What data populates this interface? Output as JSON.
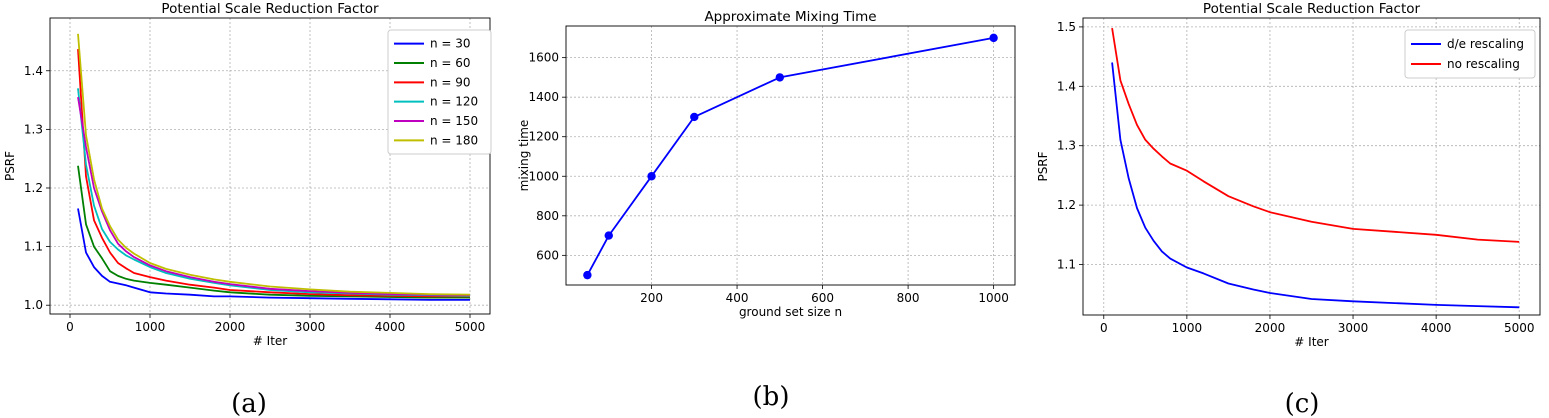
{
  "chart_data": [
    {
      "type": "line",
      "title": "Potential Scale Reduction Factor",
      "xlabel": "# Iter",
      "ylabel": "PSRF",
      "xlim": [
        -250,
        5250
      ],
      "ylim": [
        0.985,
        1.49
      ],
      "xticks": [
        0,
        1000,
        2000,
        3000,
        4000,
        5000
      ],
      "xtick_labels": [
        "0",
        "1000",
        "2000",
        "3000",
        "4000",
        "5000"
      ],
      "yticks": [
        1.0,
        1.1,
        1.2,
        1.3,
        1.4
      ],
      "ytick_labels": [
        "1.0",
        "1.1",
        "1.2",
        "1.3",
        "1.4"
      ],
      "grid": true,
      "legend_position": "top-right",
      "x": [
        100,
        200,
        300,
        400,
        500,
        600,
        700,
        800,
        1000,
        1200,
        1500,
        1800,
        2000,
        2500,
        3000,
        3500,
        4000,
        4500,
        5000
      ],
      "series": [
        {
          "name": "n = 30",
          "color": "#0000ff",
          "values": [
            1.165,
            1.09,
            1.065,
            1.05,
            1.04,
            1.037,
            1.034,
            1.03,
            1.022,
            1.02,
            1.018,
            1.015,
            1.015,
            1.013,
            1.012,
            1.011,
            1.01,
            1.009,
            1.009
          ]
        },
        {
          "name": "n = 60",
          "color": "#008000",
          "values": [
            1.238,
            1.138,
            1.1,
            1.08,
            1.058,
            1.05,
            1.045,
            1.042,
            1.038,
            1.035,
            1.03,
            1.025,
            1.022,
            1.018,
            1.016,
            1.015,
            1.014,
            1.013,
            1.013
          ]
        },
        {
          "name": "n = 90",
          "color": "#ff0000",
          "values": [
            1.437,
            1.22,
            1.145,
            1.115,
            1.09,
            1.072,
            1.063,
            1.055,
            1.048,
            1.042,
            1.035,
            1.03,
            1.026,
            1.022,
            1.019,
            1.017,
            1.016,
            1.015,
            1.015
          ]
        },
        {
          "name": "n = 120",
          "color": "#00bfbf",
          "values": [
            1.37,
            1.24,
            1.17,
            1.13,
            1.108,
            1.095,
            1.085,
            1.078,
            1.065,
            1.055,
            1.045,
            1.038,
            1.034,
            1.026,
            1.022,
            1.02,
            1.018,
            1.017,
            1.016
          ]
        },
        {
          "name": "n = 150",
          "color": "#bf00bf",
          "values": [
            1.355,
            1.27,
            1.2,
            1.16,
            1.128,
            1.105,
            1.092,
            1.082,
            1.068,
            1.058,
            1.048,
            1.04,
            1.036,
            1.028,
            1.024,
            1.021,
            1.019,
            1.018,
            1.017
          ]
        },
        {
          "name": "n = 180",
          "color": "#bfbf00",
          "values": [
            1.463,
            1.29,
            1.215,
            1.165,
            1.135,
            1.112,
            1.098,
            1.088,
            1.072,
            1.062,
            1.052,
            1.044,
            1.04,
            1.032,
            1.027,
            1.023,
            1.021,
            1.019,
            1.018
          ]
        }
      ]
    },
    {
      "type": "line",
      "title": "Approximate Mixing Time",
      "xlabel": "ground set size n",
      "ylabel": "mixing time",
      "xlim": [
        0,
        1050
      ],
      "ylim": [
        450,
        1760
      ],
      "xticks": [
        200,
        400,
        600,
        800,
        1000
      ],
      "xtick_labels": [
        "200",
        "400",
        "600",
        "800",
        "1000"
      ],
      "yticks": [
        600,
        800,
        1000,
        1200,
        1400,
        1600
      ],
      "ytick_labels": [
        "600",
        "800",
        "1000",
        "1200",
        "1400",
        "1600"
      ],
      "grid": true,
      "markers": true,
      "x": [
        50,
        100,
        200,
        300,
        500,
        1000
      ],
      "series": [
        {
          "color": "#0000ff",
          "values": [
            500,
            700,
            1000,
            1300,
            1500,
            1700
          ]
        }
      ]
    },
    {
      "type": "line",
      "title": "Potential Scale Reduction Factor",
      "xlabel": "# Iter",
      "ylabel": "PSRF",
      "xlim": [
        -250,
        5250
      ],
      "ylim": [
        1.015,
        1.515
      ],
      "xticks": [
        0,
        1000,
        2000,
        3000,
        4000,
        5000
      ],
      "xtick_labels": [
        "0",
        "1000",
        "2000",
        "3000",
        "4000",
        "5000"
      ],
      "yticks": [
        1.1,
        1.2,
        1.3,
        1.4,
        1.5
      ],
      "ytick_labels": [
        "1.1",
        "1.2",
        "1.3",
        "1.4",
        "1.5"
      ],
      "grid": true,
      "legend_position": "top-right",
      "x": [
        100,
        200,
        300,
        400,
        500,
        600,
        700,
        800,
        1000,
        1200,
        1500,
        1800,
        2000,
        2500,
        3000,
        3500,
        4000,
        4500,
        5000
      ],
      "series": [
        {
          "name": "d/e rescaling",
          "color": "#0000ff",
          "values": [
            1.44,
            1.31,
            1.245,
            1.195,
            1.162,
            1.14,
            1.122,
            1.11,
            1.095,
            1.085,
            1.068,
            1.058,
            1.052,
            1.042,
            1.038,
            1.035,
            1.032,
            1.03,
            1.028
          ]
        },
        {
          "name": "no rescaling",
          "color": "#ff0000",
          "values": [
            1.498,
            1.41,
            1.37,
            1.335,
            1.31,
            1.295,
            1.282,
            1.27,
            1.258,
            1.24,
            1.215,
            1.198,
            1.188,
            1.172,
            1.16,
            1.155,
            1.15,
            1.142,
            1.138
          ]
        }
      ]
    }
  ],
  "captions": [
    "(a)",
    "(b)",
    "(c)"
  ]
}
